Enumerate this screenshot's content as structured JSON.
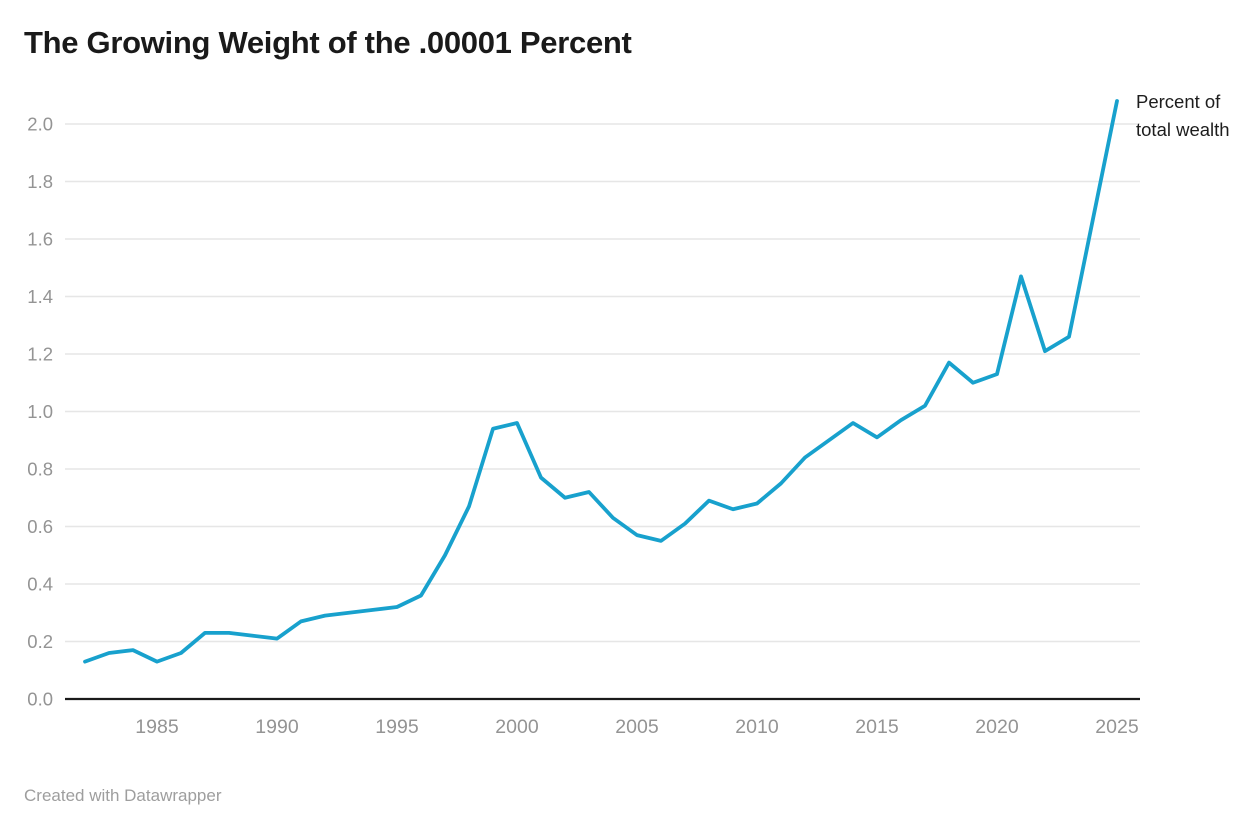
{
  "header": {
    "title": "The Growing Weight of the .00001 Percent"
  },
  "annotation": {
    "series_label": "Percent of total wealth"
  },
  "footer": {
    "credit": "Created with Datawrapper"
  },
  "colors": {
    "line": "#18a1cd",
    "grid": "#e6e6e6",
    "axis": "#1a1a1a",
    "tick_text": "#949494",
    "title_text": "#1a1a1a",
    "annotation_text": "#1d1d1d",
    "footer_text": "#9e9e9e"
  },
  "chart_data": {
    "type": "line",
    "title": "The Growing Weight of the .00001 Percent",
    "series_label": "Percent of total wealth",
    "xlabel": "",
    "ylabel": "Percent of total wealth",
    "xlim": [
      1982,
      2025
    ],
    "ylim": [
      0.0,
      2.1
    ],
    "grid": "horizontal",
    "legend_position": "top-right annotation",
    "xticks": [
      1985,
      1990,
      1995,
      2000,
      2005,
      2010,
      2015,
      2020,
      2025
    ],
    "yticks": [
      0.0,
      0.2,
      0.4,
      0.6,
      0.8,
      1.0,
      1.2,
      1.4,
      1.6,
      1.8,
      2.0
    ],
    "x": [
      1982,
      1983,
      1984,
      1985,
      1986,
      1987,
      1988,
      1989,
      1990,
      1991,
      1992,
      1993,
      1994,
      1995,
      1996,
      1997,
      1998,
      1999,
      2000,
      2001,
      2002,
      2003,
      2004,
      2005,
      2006,
      2007,
      2008,
      2009,
      2010,
      2011,
      2012,
      2013,
      2014,
      2015,
      2016,
      2017,
      2018,
      2019,
      2020,
      2021,
      2022,
      2023,
      2024,
      2025
    ],
    "values": [
      0.13,
      0.16,
      0.17,
      0.13,
      0.16,
      0.23,
      0.23,
      0.22,
      0.21,
      0.27,
      0.29,
      0.3,
      0.31,
      0.32,
      0.36,
      0.5,
      0.67,
      0.94,
      0.96,
      0.77,
      0.7,
      0.72,
      0.63,
      0.57,
      0.55,
      0.61,
      0.69,
      0.66,
      0.68,
      0.75,
      0.84,
      0.9,
      0.96,
      0.91,
      0.97,
      1.02,
      1.17,
      1.1,
      1.13,
      1.47,
      1.21,
      1.26,
      1.67,
      2.08
    ]
  }
}
